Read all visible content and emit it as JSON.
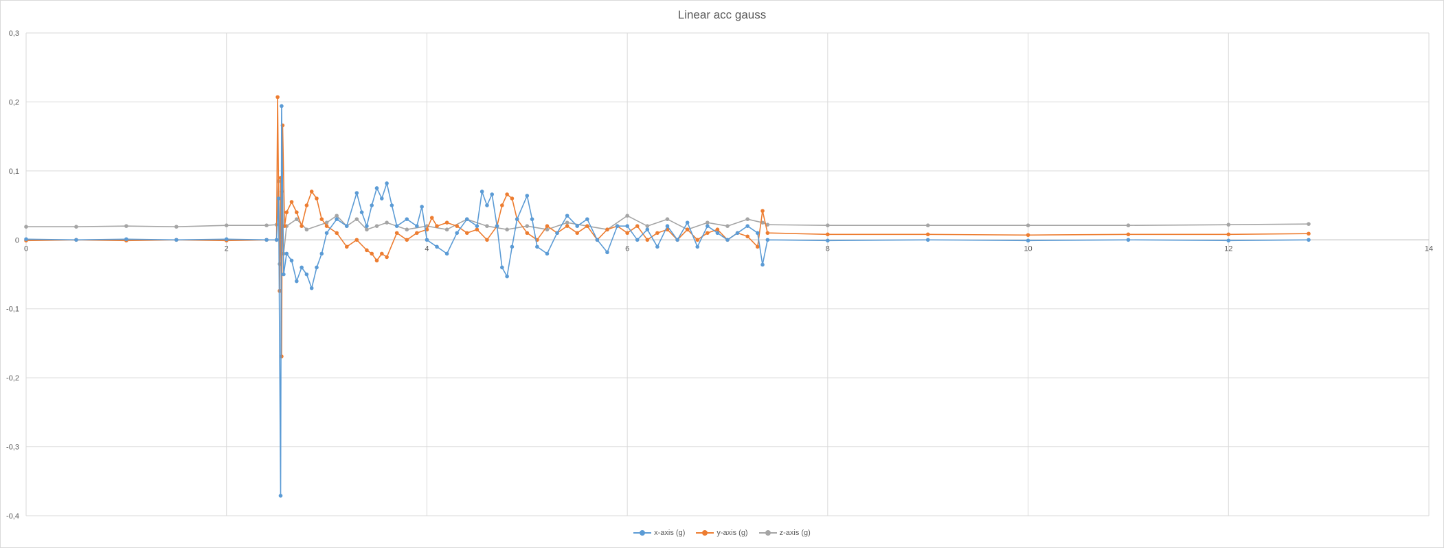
{
  "chart_data": {
    "type": "scatter",
    "title": "Linear acc gauss",
    "xlim": [
      0,
      14
    ],
    "ylim": [
      -0.4,
      0.3
    ],
    "x_ticks": [
      "0",
      "2",
      "4",
      "6",
      "8",
      "10",
      "12",
      "14"
    ],
    "y_ticks": [
      "0,3",
      "0,2",
      "0,1",
      "0",
      "-0,1",
      "-0,2",
      "-0,3",
      "-0,4"
    ],
    "grid": true,
    "legend_position": "bottom",
    "series": [
      {
        "name": "x-axis (g)",
        "color": "#5B9BD5",
        "points": [
          [
            0,
            0.001
          ],
          [
            0.5,
            0.0
          ],
          [
            1.0,
            0.001
          ],
          [
            1.5,
            0.0
          ],
          [
            2.0,
            0.001
          ],
          [
            2.4,
            0.0
          ],
          [
            2.5,
            0.0
          ],
          [
            2.52,
            0.06
          ],
          [
            2.54,
            -0.371
          ],
          [
            2.55,
            0.194
          ],
          [
            2.57,
            -0.05
          ],
          [
            2.6,
            -0.02
          ],
          [
            2.65,
            -0.03
          ],
          [
            2.7,
            -0.06
          ],
          [
            2.75,
            -0.04
          ],
          [
            2.8,
            -0.05
          ],
          [
            2.85,
            -0.07
          ],
          [
            2.9,
            -0.04
          ],
          [
            2.95,
            -0.02
          ],
          [
            3.0,
            0.01
          ],
          [
            3.1,
            0.03
          ],
          [
            3.2,
            0.02
          ],
          [
            3.3,
            0.068
          ],
          [
            3.35,
            0.04
          ],
          [
            3.4,
            0.02
          ],
          [
            3.45,
            0.05
          ],
          [
            3.5,
            0.075
          ],
          [
            3.55,
            0.06
          ],
          [
            3.6,
            0.082
          ],
          [
            3.65,
            0.05
          ],
          [
            3.7,
            0.02
          ],
          [
            3.8,
            0.03
          ],
          [
            3.9,
            0.02
          ],
          [
            3.95,
            0.048
          ],
          [
            4.0,
            0.0
          ],
          [
            4.1,
            -0.01
          ],
          [
            4.2,
            -0.02
          ],
          [
            4.3,
            0.01
          ],
          [
            4.4,
            0.03
          ],
          [
            4.5,
            0.02
          ],
          [
            4.55,
            0.07
          ],
          [
            4.6,
            0.05
          ],
          [
            4.65,
            0.066
          ],
          [
            4.7,
            0.02
          ],
          [
            4.75,
            -0.04
          ],
          [
            4.8,
            -0.053
          ],
          [
            4.85,
            -0.01
          ],
          [
            4.9,
            0.03
          ],
          [
            5.0,
            0.064
          ],
          [
            5.05,
            0.03
          ],
          [
            5.1,
            -0.01
          ],
          [
            5.2,
            -0.02
          ],
          [
            5.3,
            0.01
          ],
          [
            5.4,
            0.035
          ],
          [
            5.5,
            0.02
          ],
          [
            5.6,
            0.03
          ],
          [
            5.7,
            0.0
          ],
          [
            5.8,
            -0.018
          ],
          [
            5.9,
            0.02
          ],
          [
            6.0,
            0.02
          ],
          [
            6.1,
            0.0
          ],
          [
            6.2,
            0.015
          ],
          [
            6.3,
            -0.01
          ],
          [
            6.4,
            0.02
          ],
          [
            6.5,
            0.0
          ],
          [
            6.6,
            0.025
          ],
          [
            6.7,
            -0.01
          ],
          [
            6.8,
            0.02
          ],
          [
            6.9,
            0.01
          ],
          [
            7.0,
            0.0
          ],
          [
            7.1,
            0.01
          ],
          [
            7.2,
            0.02
          ],
          [
            7.3,
            0.01
          ],
          [
            7.35,
            -0.036
          ],
          [
            7.4,
            0.0
          ],
          [
            8.0,
            -0.001
          ],
          [
            9.0,
            0.0
          ],
          [
            10.0,
            -0.001
          ],
          [
            11.0,
            0.0
          ],
          [
            12.0,
            -0.001
          ],
          [
            12.8,
            0.0
          ]
        ]
      },
      {
        "name": "y-axis (g)",
        "color": "#ED7D31",
        "points": [
          [
            0,
            -0.001
          ],
          [
            0.5,
            0.0
          ],
          [
            1.0,
            -0.001
          ],
          [
            1.5,
            0.0
          ],
          [
            2.0,
            -0.001
          ],
          [
            2.4,
            0.0
          ],
          [
            2.5,
            0.0
          ],
          [
            2.51,
            0.207
          ],
          [
            2.53,
            -0.074
          ],
          [
            2.54,
            0.09
          ],
          [
            2.55,
            -0.169
          ],
          [
            2.56,
            0.166
          ],
          [
            2.58,
            0.02
          ],
          [
            2.6,
            0.04
          ],
          [
            2.65,
            0.055
          ],
          [
            2.7,
            0.04
          ],
          [
            2.75,
            0.02
          ],
          [
            2.8,
            0.05
          ],
          [
            2.85,
            0.07
          ],
          [
            2.9,
            0.06
          ],
          [
            2.95,
            0.03
          ],
          [
            3.0,
            0.02
          ],
          [
            3.1,
            0.01
          ],
          [
            3.2,
            -0.01
          ],
          [
            3.3,
            0.0
          ],
          [
            3.4,
            -0.015
          ],
          [
            3.45,
            -0.02
          ],
          [
            3.5,
            -0.03
          ],
          [
            3.55,
            -0.02
          ],
          [
            3.6,
            -0.025
          ],
          [
            3.7,
            0.01
          ],
          [
            3.8,
            0.0
          ],
          [
            3.9,
            0.01
          ],
          [
            4.0,
            0.015
          ],
          [
            4.05,
            0.032
          ],
          [
            4.1,
            0.02
          ],
          [
            4.2,
            0.025
          ],
          [
            4.3,
            0.02
          ],
          [
            4.4,
            0.01
          ],
          [
            4.5,
            0.015
          ],
          [
            4.6,
            0.0
          ],
          [
            4.7,
            0.02
          ],
          [
            4.75,
            0.05
          ],
          [
            4.8,
            0.066
          ],
          [
            4.85,
            0.06
          ],
          [
            4.9,
            0.03
          ],
          [
            5.0,
            0.01
          ],
          [
            5.1,
            0.0
          ],
          [
            5.2,
            0.02
          ],
          [
            5.3,
            0.01
          ],
          [
            5.4,
            0.02
          ],
          [
            5.5,
            0.01
          ],
          [
            5.6,
            0.02
          ],
          [
            5.7,
            0.0
          ],
          [
            5.8,
            0.015
          ],
          [
            5.9,
            0.02
          ],
          [
            6.0,
            0.01
          ],
          [
            6.1,
            0.02
          ],
          [
            6.2,
            0.0
          ],
          [
            6.3,
            0.01
          ],
          [
            6.4,
            0.015
          ],
          [
            6.5,
            0.0
          ],
          [
            6.6,
            0.015
          ],
          [
            6.7,
            0.0
          ],
          [
            6.8,
            0.01
          ],
          [
            6.9,
            0.015
          ],
          [
            7.0,
            0.0
          ],
          [
            7.1,
            0.01
          ],
          [
            7.2,
            0.005
          ],
          [
            7.3,
            -0.01
          ],
          [
            7.35,
            0.042
          ],
          [
            7.4,
            0.01
          ],
          [
            8.0,
            0.008
          ],
          [
            9.0,
            0.008
          ],
          [
            10.0,
            0.007
          ],
          [
            11.0,
            0.008
          ],
          [
            12.0,
            0.008
          ],
          [
            12.8,
            0.009
          ]
        ]
      },
      {
        "name": "z-axis (g)",
        "color": "#A5A5A5",
        "points": [
          [
            0,
            0.019
          ],
          [
            0.5,
            0.019
          ],
          [
            1.0,
            0.02
          ],
          [
            1.5,
            0.019
          ],
          [
            2.0,
            0.021
          ],
          [
            2.4,
            0.021
          ],
          [
            2.5,
            0.022
          ],
          [
            2.52,
            0.085
          ],
          [
            2.53,
            -0.035
          ],
          [
            2.55,
            0.07
          ],
          [
            2.57,
            -0.02
          ],
          [
            2.6,
            0.02
          ],
          [
            2.7,
            0.03
          ],
          [
            2.8,
            0.015
          ],
          [
            3.0,
            0.025
          ],
          [
            3.1,
            0.035
          ],
          [
            3.2,
            0.02
          ],
          [
            3.3,
            0.03
          ],
          [
            3.4,
            0.015
          ],
          [
            3.5,
            0.02
          ],
          [
            3.6,
            0.025
          ],
          [
            3.8,
            0.015
          ],
          [
            4.0,
            0.02
          ],
          [
            4.2,
            0.015
          ],
          [
            4.4,
            0.03
          ],
          [
            4.6,
            0.02
          ],
          [
            4.8,
            0.015
          ],
          [
            5.0,
            0.02
          ],
          [
            5.2,
            0.015
          ],
          [
            5.4,
            0.025
          ],
          [
            5.6,
            0.02
          ],
          [
            5.8,
            0.015
          ],
          [
            6.0,
            0.035
          ],
          [
            6.2,
            0.02
          ],
          [
            6.4,
            0.03
          ],
          [
            6.6,
            0.015
          ],
          [
            6.8,
            0.025
          ],
          [
            7.0,
            0.02
          ],
          [
            7.2,
            0.03
          ],
          [
            7.35,
            0.025
          ],
          [
            7.4,
            0.022
          ],
          [
            8.0,
            0.021
          ],
          [
            9.0,
            0.021
          ],
          [
            10.0,
            0.021
          ],
          [
            11.0,
            0.021
          ],
          [
            12.0,
            0.022
          ],
          [
            12.8,
            0.023
          ]
        ]
      }
    ]
  }
}
